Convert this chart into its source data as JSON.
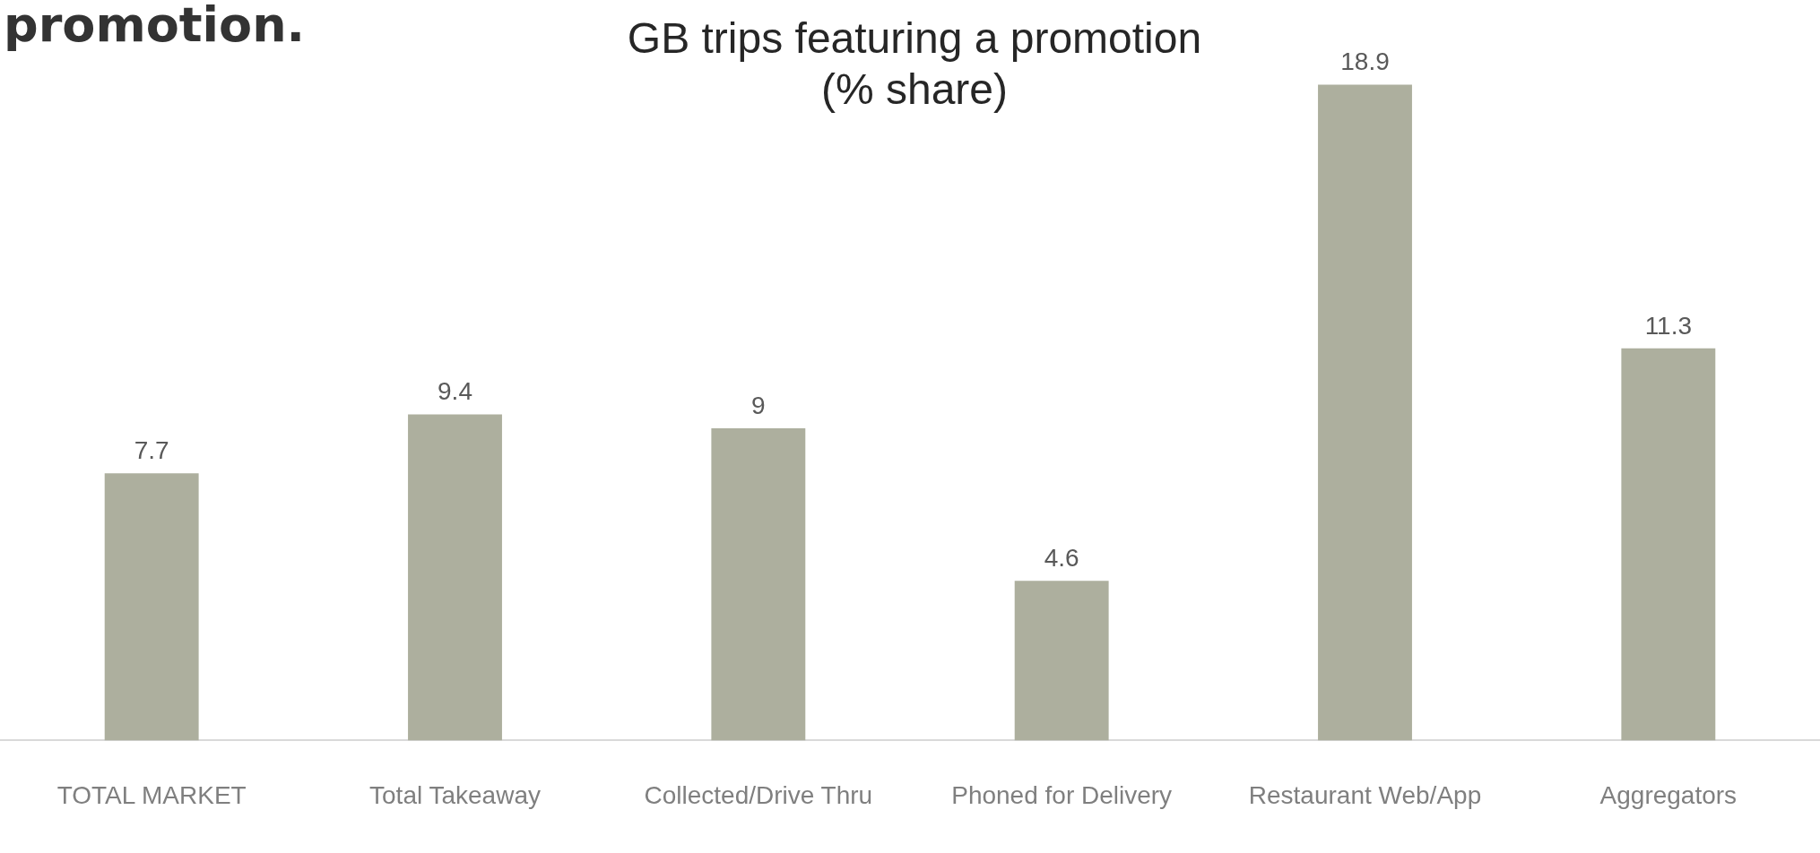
{
  "chart_data": {
    "type": "bar",
    "title": "GB trips featuring a promotion\n(% share)",
    "annotations": [
      "promotion."
    ],
    "categories": [
      "TOTAL MARKET",
      "Total Takeaway",
      "Collected/Drive Thru",
      "Phoned for Delivery",
      "Restaurant Web/App",
      "Aggregators"
    ],
    "values": [
      7.7,
      9.4,
      9,
      4.6,
      18.9,
      11.3
    ],
    "color": "#adaf9e",
    "data_labels": true,
    "grid": false,
    "legend": false
  }
}
